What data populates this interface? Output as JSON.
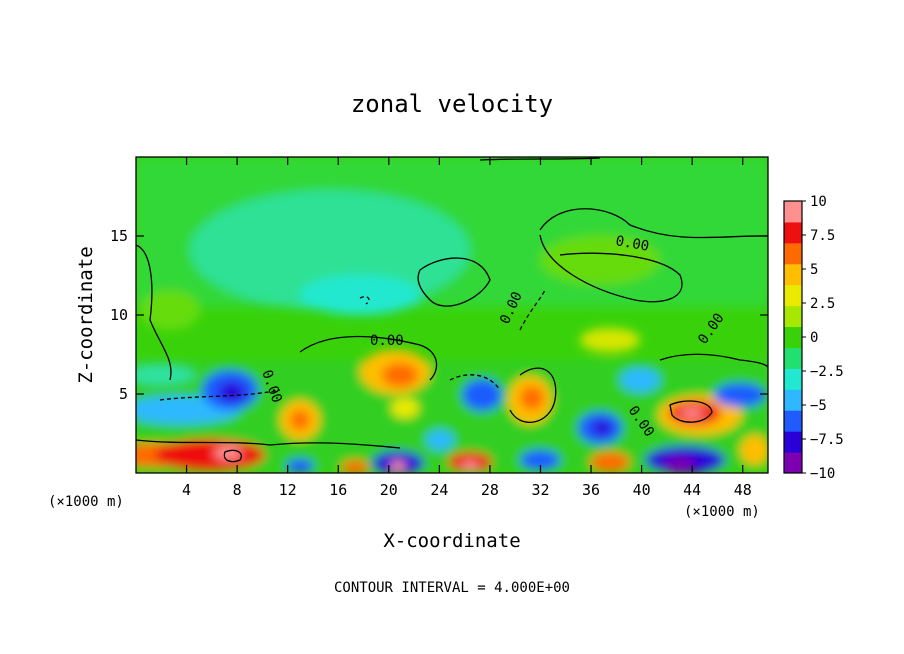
{
  "chart_data": {
    "type": "heatmap",
    "title": "zonal velocity",
    "xlabel": "X-coordinate",
    "ylabel": "Z-coordinate",
    "x_unit": "(×1000 m)",
    "xlim": [
      0,
      50
    ],
    "ylim": [
      0,
      20
    ],
    "x_ticks": [
      "4",
      "8",
      "12",
      "16",
      "20",
      "24",
      "28",
      "32",
      "36",
      "40",
      "44",
      "48"
    ],
    "y_ticks": [
      "5",
      "10",
      "15"
    ],
    "contour_interval_text": "CONTOUR INTERVAL = 4.000E+00",
    "contour_label": "0.00",
    "colorbar": {
      "min": -10,
      "max": 10,
      "tick_labels": [
        "10",
        "7.5",
        "5",
        "2.5",
        "0",
        "−2.5",
        "−5",
        "−7.5",
        "−10"
      ],
      "colors": [
        "#7a00b0",
        "#2a00d8",
        "#1f5bff",
        "#2fb8ff",
        "#22e8d0",
        "#22e070",
        "#39d20a",
        "#a8e800",
        "#eaea00",
        "#ffbe00",
        "#ff6a00",
        "#ee1010",
        "#ff9090"
      ]
    },
    "features": [
      {
        "x": 7.5,
        "z": 1.2,
        "value": 10
      },
      {
        "x": 5.5,
        "z": 1.5,
        "value": 7.5
      },
      {
        "x": 6.2,
        "z": 5.0,
        "value": -7.5
      },
      {
        "x": 1.5,
        "z": 3.8,
        "value": -5
      },
      {
        "x": 13.5,
        "z": 3.2,
        "value": 5
      },
      {
        "x": 20.8,
        "z": 6.2,
        "value": 5
      },
      {
        "x": 19.0,
        "z": 0.6,
        "value": -7.5
      },
      {
        "x": 20.5,
        "z": 0.4,
        "value": 10
      },
      {
        "x": 26.5,
        "z": 0.6,
        "value": 7.5
      },
      {
        "x": 27.0,
        "z": 4.5,
        "value": -5
      },
      {
        "x": 31.5,
        "z": 4.8,
        "value": 5
      },
      {
        "x": 37.0,
        "z": 2.6,
        "value": -7.5
      },
      {
        "x": 37.2,
        "z": 0.6,
        "value": 5
      },
      {
        "x": 42.3,
        "z": 0.6,
        "value": -10
      },
      {
        "x": 44.0,
        "z": 3.8,
        "value": 7.5
      },
      {
        "x": 43.5,
        "z": 3.6,
        "value": 10
      },
      {
        "x": 18.0,
        "z": 11.5,
        "value": -2.5
      },
      {
        "x": 46.5,
        "z": 5.0,
        "value": -5
      }
    ]
  }
}
